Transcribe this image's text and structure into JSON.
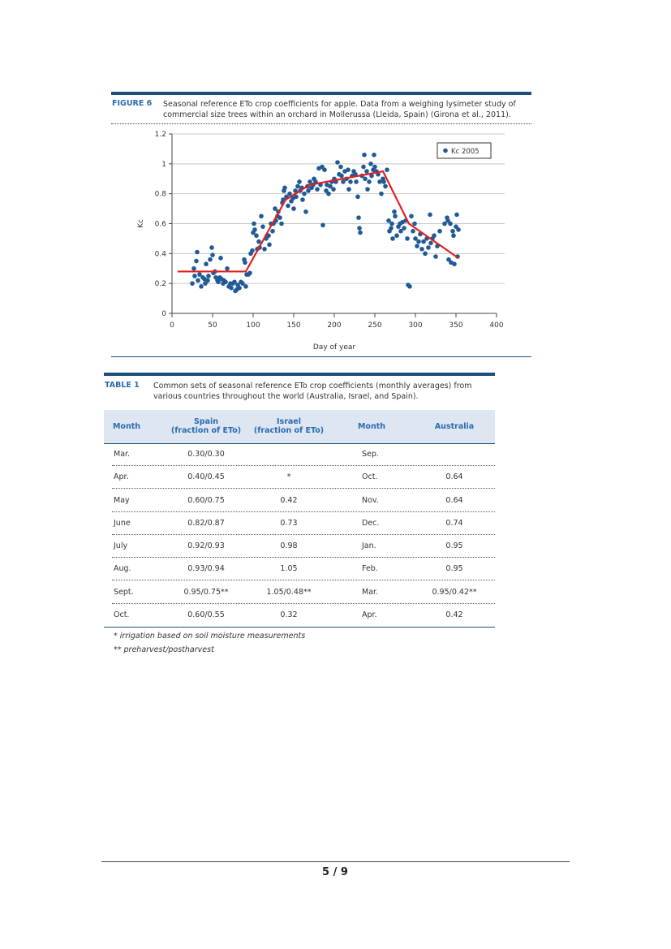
{
  "figure": {
    "label": "FIGURE 6",
    "caption": "Seasonal reference ETo crop coefficients for apple. Data from a weighing lysimeter study of commercial size trees within an orchard in Mollerussa (Lleida, Spain) (Girona et al., 2011)."
  },
  "chart_data": {
    "type": "scatter",
    "xlabel": "Day of year",
    "ylabel": "Kc",
    "xlim": [
      0,
      400
    ],
    "ylim": [
      0,
      1.2
    ],
    "xticks": [
      "0",
      "50",
      "100",
      "150",
      "200",
      "250",
      "300",
      "350",
      "400"
    ],
    "yticks": [
      "0",
      "0.2",
      "0.4",
      "0.6",
      "0.8",
      "1",
      "1.2"
    ],
    "grid": "horizontal",
    "legend_position": "top-right",
    "series": [
      {
        "name": "Kc 2005",
        "color": "#1f5a96",
        "points": [
          [
            25,
            0.2
          ],
          [
            27,
            0.3
          ],
          [
            28,
            0.25
          ],
          [
            30,
            0.35
          ],
          [
            31,
            0.41
          ],
          [
            32,
            0.22
          ],
          [
            34,
            0.26
          ],
          [
            36,
            0.18
          ],
          [
            38,
            0.24
          ],
          [
            40,
            0.23
          ],
          [
            41,
            0.2
          ],
          [
            42,
            0.33
          ],
          [
            44,
            0.22
          ],
          [
            45,
            0.25
          ],
          [
            47,
            0.36
          ],
          [
            49,
            0.44
          ],
          [
            50,
            0.39
          ],
          [
            51,
            0.27
          ],
          [
            53,
            0.28
          ],
          [
            54,
            0.24
          ],
          [
            56,
            0.22
          ],
          [
            57,
            0.21
          ],
          [
            59,
            0.24
          ],
          [
            60,
            0.37
          ],
          [
            61,
            0.23
          ],
          [
            63,
            0.2
          ],
          [
            64,
            0.22
          ],
          [
            66,
            0.21
          ],
          [
            68,
            0.3
          ],
          [
            70,
            0.18
          ],
          [
            72,
            0.2
          ],
          [
            73,
            0.17
          ],
          [
            75,
            0.2
          ],
          [
            77,
            0.21
          ],
          [
            78,
            0.15
          ],
          [
            80,
            0.16
          ],
          [
            81,
            0.19
          ],
          [
            83,
            0.17
          ],
          [
            85,
            0.21
          ],
          [
            87,
            0.2
          ],
          [
            89,
            0.36
          ],
          [
            90,
            0.34
          ],
          [
            91,
            0.18
          ],
          [
            92,
            0.26
          ],
          [
            94,
            0.26
          ],
          [
            96,
            0.27
          ],
          [
            97,
            0.4
          ],
          [
            99,
            0.42
          ],
          [
            100,
            0.54
          ],
          [
            101,
            0.6
          ],
          [
            102,
            0.56
          ],
          [
            104,
            0.52
          ],
          [
            105,
            0.43
          ],
          [
            107,
            0.48
          ],
          [
            108,
            0.44
          ],
          [
            110,
            0.65
          ],
          [
            112,
            0.58
          ],
          [
            114,
            0.43
          ],
          [
            116,
            0.5
          ],
          [
            117,
            0.52
          ],
          [
            119,
            0.52
          ],
          [
            120,
            0.46
          ],
          [
            122,
            0.6
          ],
          [
            124,
            0.55
          ],
          [
            125,
            0.6
          ],
          [
            127,
            0.7
          ],
          [
            128,
            0.62
          ],
          [
            130,
            0.65
          ],
          [
            131,
            0.68
          ],
          [
            133,
            0.64
          ],
          [
            135,
            0.6
          ],
          [
            136,
            0.74
          ],
          [
            137,
            0.76
          ],
          [
            138,
            0.82
          ],
          [
            139,
            0.84
          ],
          [
            141,
            0.78
          ],
          [
            143,
            0.72
          ],
          [
            145,
            0.8
          ],
          [
            147,
            0.75
          ],
          [
            149,
            0.77
          ],
          [
            150,
            0.7
          ],
          [
            152,
            0.82
          ],
          [
            153,
            0.78
          ],
          [
            155,
            0.85
          ],
          [
            157,
            0.88
          ],
          [
            158,
            0.82
          ],
          [
            160,
            0.84
          ],
          [
            161,
            0.76
          ],
          [
            163,
            0.8
          ],
          [
            165,
            0.68
          ],
          [
            167,
            0.85
          ],
          [
            168,
            0.82
          ],
          [
            170,
            0.88
          ],
          [
            172,
            0.84
          ],
          [
            174,
            0.86
          ],
          [
            175,
            0.9
          ],
          [
            177,
            0.88
          ],
          [
            179,
            0.83
          ],
          [
            181,
            0.97
          ],
          [
            183,
            0.86
          ],
          [
            185,
            0.98
          ],
          [
            186,
            0.59
          ],
          [
            188,
            0.96
          ],
          [
            190,
            0.82
          ],
          [
            191,
            0.86
          ],
          [
            193,
            0.8
          ],
          [
            195,
            0.85
          ],
          [
            197,
            0.88
          ],
          [
            199,
            0.83
          ],
          [
            200,
            0.9
          ],
          [
            202,
            0.88
          ],
          [
            204,
            1.01
          ],
          [
            206,
            0.93
          ],
          [
            208,
            0.98
          ],
          [
            209,
            0.92
          ],
          [
            211,
            0.88
          ],
          [
            213,
            0.95
          ],
          [
            215,
            0.9
          ],
          [
            217,
            0.96
          ],
          [
            218,
            0.83
          ],
          [
            220,
            0.88
          ],
          [
            222,
            0.92
          ],
          [
            224,
            0.95
          ],
          [
            226,
            0.93
          ],
          [
            227,
            0.88
          ],
          [
            229,
            0.78
          ],
          [
            230,
            0.64
          ],
          [
            231,
            0.57
          ],
          [
            232,
            0.54
          ],
          [
            234,
            0.92
          ],
          [
            236,
            0.98
          ],
          [
            237,
            1.06
          ],
          [
            238,
            0.9
          ],
          [
            240,
            0.95
          ],
          [
            241,
            0.83
          ],
          [
            243,
            0.88
          ],
          [
            245,
            1.0
          ],
          [
            246,
            0.92
          ],
          [
            248,
            0.96
          ],
          [
            249,
            1.06
          ],
          [
            250,
            0.98
          ],
          [
            252,
            0.95
          ],
          [
            254,
            0.93
          ],
          [
            256,
            0.88
          ],
          [
            258,
            0.8
          ],
          [
            260,
            0.9
          ],
          [
            261,
            0.88
          ],
          [
            263,
            0.85
          ],
          [
            265,
            0.96
          ],
          [
            267,
            0.62
          ],
          [
            268,
            0.55
          ],
          [
            270,
            0.57
          ],
          [
            271,
            0.6
          ],
          [
            272,
            0.5
          ],
          [
            274,
            0.68
          ],
          [
            275,
            0.65
          ],
          [
            277,
            0.52
          ],
          [
            279,
            0.58
          ],
          [
            281,
            0.6
          ],
          [
            282,
            0.55
          ],
          [
            284,
            0.61
          ],
          [
            286,
            0.57
          ],
          [
            288,
            0.62
          ],
          [
            290,
            0.5
          ],
          [
            291,
            0.19
          ],
          [
            293,
            0.18
          ],
          [
            295,
            0.65
          ],
          [
            297,
            0.55
          ],
          [
            299,
            0.6
          ],
          [
            300,
            0.5
          ],
          [
            302,
            0.45
          ],
          [
            304,
            0.48
          ],
          [
            306,
            0.53
          ],
          [
            308,
            0.43
          ],
          [
            310,
            0.48
          ],
          [
            312,
            0.4
          ],
          [
            314,
            0.5
          ],
          [
            316,
            0.44
          ],
          [
            318,
            0.66
          ],
          [
            319,
            0.47
          ],
          [
            321,
            0.5
          ],
          [
            323,
            0.52
          ],
          [
            325,
            0.38
          ],
          [
            327,
            0.45
          ],
          [
            330,
            0.55
          ],
          [
            336,
            0.6
          ],
          [
            339,
            0.64
          ],
          [
            340,
            0.62
          ],
          [
            341,
            0.36
          ],
          [
            343,
            0.6
          ],
          [
            344,
            0.34
          ],
          [
            346,
            0.55
          ],
          [
            347,
            0.52
          ],
          [
            348,
            0.33
          ],
          [
            350,
            0.58
          ],
          [
            351,
            0.66
          ],
          [
            352,
            0.38
          ],
          [
            353,
            0.56
          ]
        ]
      }
    ],
    "trend_line": [
      [
        7,
        0.28
      ],
      [
        91,
        0.28
      ],
      [
        140,
        0.76
      ],
      [
        170,
        0.86
      ],
      [
        260,
        0.95
      ],
      [
        292,
        0.6
      ],
      [
        353,
        0.37
      ]
    ],
    "trend_color": "#e02020"
  },
  "table": {
    "label": "TABLE 1",
    "caption": "Common sets of seasonal reference ETo crop coefficients (monthly averages) from various countries throughout the world (Australia, Israel, and Spain).",
    "headers": {
      "month1": "Month",
      "spain": "Spain",
      "spain_sub": "(fraction of ETo)",
      "israel": "Israel",
      "israel_sub": "(fraction of ETo)",
      "month2": "Month",
      "australia": "Australia"
    },
    "rows": [
      {
        "m1": "Mar.",
        "spain": "0.30/0.30",
        "israel": "",
        "m2": "Sep.",
        "aus": ""
      },
      {
        "m1": "Apr.",
        "spain": "0.40/0.45",
        "israel": "*",
        "m2": "Oct.",
        "aus": "0.64"
      },
      {
        "m1": "May",
        "spain": "0.60/0.75",
        "israel": "0.42",
        "m2": "Nov.",
        "aus": "0.64"
      },
      {
        "m1": "June",
        "spain": "0.82/0.87",
        "israel": "0.73",
        "m2": "Dec.",
        "aus": "0.74"
      },
      {
        "m1": "July",
        "spain": "0.92/0.93",
        "israel": "0.98",
        "m2": "Jan.",
        "aus": "0.95"
      },
      {
        "m1": "Aug.",
        "spain": "0.93/0.94",
        "israel": "1.05",
        "m2": "Feb.",
        "aus": "0.95"
      },
      {
        "m1": "Sept.",
        "spain": "0.95/0.75**",
        "israel": "1.05/0.48**",
        "m2": "Mar.",
        "aus": "0.95/0.42**"
      },
      {
        "m1": "Oct.",
        "spain": "0.60/0.55",
        "israel": "0.32",
        "m2": "Apr.",
        "aus": "0.42"
      }
    ],
    "note1": "* irrigation based on soil moisture measurements",
    "note2": "** preharvest/postharvest"
  },
  "page": {
    "number": "5 / 9"
  }
}
